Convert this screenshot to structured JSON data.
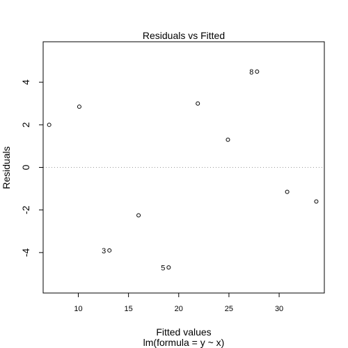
{
  "chart_data": {
    "type": "scatter",
    "title": "Residuals vs Fitted",
    "xlabel": "Fitted values",
    "ylabel": "Residuals",
    "subtitle": "lm(formula = y ~ x)",
    "xlim": [
      6.5,
      34.5
    ],
    "ylim": [
      -5.9,
      5.9
    ],
    "xticks": [
      10,
      15,
      20,
      25,
      30
    ],
    "yticks": [
      4,
      2,
      0,
      -2,
      -4
    ],
    "reference_line_y": 0,
    "points": [
      {
        "x": 7.1,
        "y": 2.0,
        "label": ""
      },
      {
        "x": 10.1,
        "y": 2.85,
        "label": ""
      },
      {
        "x": 13.1,
        "y": -3.9,
        "label": "3"
      },
      {
        "x": 16.0,
        "y": -2.25,
        "label": ""
      },
      {
        "x": 19.0,
        "y": -4.7,
        "label": "5"
      },
      {
        "x": 21.9,
        "y": 3.0,
        "label": ""
      },
      {
        "x": 24.9,
        "y": 1.3,
        "label": ""
      },
      {
        "x": 27.8,
        "y": 4.5,
        "label": "8"
      },
      {
        "x": 30.8,
        "y": -1.15,
        "label": ""
      },
      {
        "x": 33.7,
        "y": -1.6,
        "label": ""
      }
    ]
  }
}
